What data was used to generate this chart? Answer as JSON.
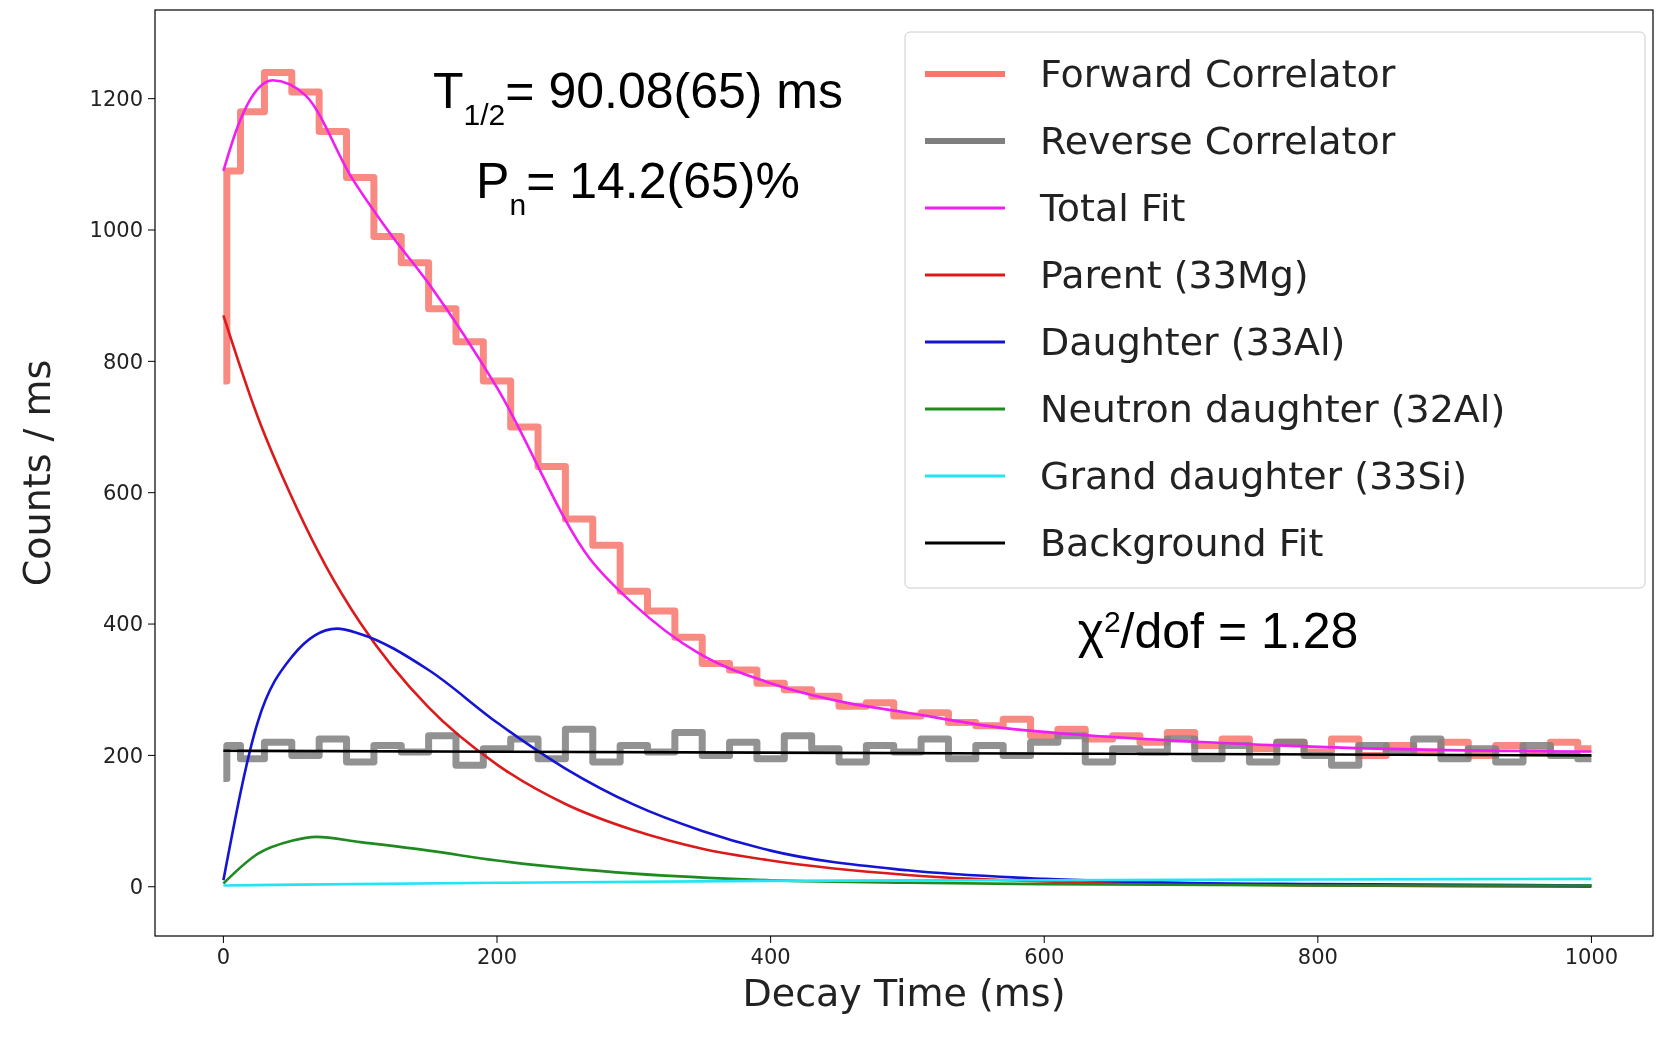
{
  "chart_data": {
    "type": "line",
    "xlabel": "Decay Time (ms)",
    "ylabel": "Counts / ms",
    "xlim": [
      -50,
      1045
    ],
    "ylim": [
      -75,
      1335
    ],
    "xticks": [
      0,
      200,
      400,
      600,
      800,
      1000
    ],
    "yticks": [
      0,
      200,
      400,
      600,
      800,
      1000,
      1200
    ],
    "legend": "top right",
    "grid": false,
    "annotations": [
      "T$_{1/2}$= 90.08(65) ms",
      "P$_{n}$= 14.2(65)%",
      "χ$^{2}$/dof = 1.28"
    ],
    "series": [
      {
        "name": "Forward Correlator",
        "type": "step",
        "color": "#f8766c",
        "x": [
          0,
          5,
          20,
          40,
          60,
          80,
          100,
          120,
          140,
          160,
          180,
          200,
          220,
          240,
          260,
          280,
          300,
          320,
          340,
          360,
          380,
          400,
          420,
          440,
          460,
          480,
          500,
          520,
          540,
          560,
          580,
          600,
          620,
          640,
          660,
          680,
          700,
          720,
          740,
          760,
          780,
          800,
          820,
          840,
          860,
          880,
          900,
          920,
          940,
          960,
          980,
          1000
        ],
        "values": [
          770,
          1090,
          1180,
          1240,
          1210,
          1150,
          1080,
          990,
          950,
          880,
          830,
          770,
          700,
          640,
          560,
          520,
          450,
          420,
          380,
          340,
          330,
          310,
          300,
          290,
          275,
          280,
          260,
          265,
          250,
          245,
          255,
          230,
          240,
          225,
          230,
          220,
          235,
          215,
          225,
          210,
          220,
          205,
          225,
          200,
          215,
          205,
          220,
          200,
          215,
          205,
          220,
          210
        ]
      },
      {
        "name": "Reverse Correlator",
        "type": "step",
        "color": "#7f7f7f",
        "x": [
          0,
          5,
          20,
          40,
          60,
          80,
          100,
          120,
          140,
          160,
          180,
          200,
          220,
          240,
          260,
          280,
          300,
          320,
          340,
          360,
          380,
          400,
          420,
          440,
          460,
          480,
          500,
          520,
          540,
          560,
          580,
          600,
          620,
          640,
          660,
          680,
          700,
          720,
          740,
          760,
          780,
          800,
          820,
          840,
          860,
          880,
          900,
          920,
          940,
          960,
          980,
          1000
        ],
        "values": [
          165,
          215,
          195,
          220,
          200,
          225,
          190,
          215,
          205,
          230,
          185,
          210,
          225,
          195,
          240,
          190,
          215,
          205,
          235,
          200,
          220,
          195,
          230,
          210,
          190,
          215,
          205,
          225,
          195,
          215,
          200,
          220,
          230,
          190,
          210,
          205,
          225,
          195,
          215,
          190,
          220,
          200,
          185,
          215,
          205,
          225,
          195,
          210,
          190,
          215,
          200,
          195
        ]
      },
      {
        "name": "Total Fit",
        "color": "#f01ef0",
        "x": [
          0,
          10,
          20,
          36,
          60,
          94,
          120,
          152,
          200,
          268,
          300,
          347,
          400,
          456,
          500,
          565,
          650,
          750,
          850,
          1000
        ],
        "values": [
          1090,
          1155,
          1200,
          1228,
          1205,
          1079,
          1000,
          913,
          760,
          499,
          430,
          356,
          310,
          280,
          265,
          243,
          228,
          217,
          210,
          206
        ]
      },
      {
        "name": "Parent (33Mg)",
        "color": "#dd1a1a",
        "x": [
          0,
          25,
          50,
          75,
          100,
          150,
          200,
          250,
          300,
          350,
          400,
          500,
          600,
          700,
          800,
          900,
          1000
        ],
        "values": [
          870,
          716,
          593,
          488,
          402,
          273,
          186,
          126,
          86,
          58,
          40,
          18,
          8,
          4,
          2,
          1,
          0
        ]
      },
      {
        "name": "Daughter (33Al)",
        "color": "#1414d4",
        "x": [
          0,
          25,
          50,
          83,
          100,
          150,
          200,
          250,
          300,
          350,
          400,
          500,
          600,
          700,
          800,
          1000
        ],
        "values": [
          10,
          250,
          350,
          393,
          385,
          330,
          250,
          180,
          125,
          85,
          55,
          25,
          12,
          6,
          4,
          2
        ]
      },
      {
        "name": "Neutron daughter (32Al)",
        "color": "#1f8a1f",
        "x": [
          0,
          25,
          50,
          68,
          100,
          150,
          200,
          300,
          400,
          500,
          600,
          800,
          1000
        ],
        "values": [
          5,
          50,
          70,
          76,
          68,
          55,
          40,
          20,
          10,
          6,
          4,
          2,
          2
        ]
      },
      {
        "name": "Grand daughter (33Si)",
        "color": "#22e4f4",
        "x": [
          0,
          200,
          400,
          600,
          800,
          1000
        ],
        "values": [
          2,
          6,
          9,
          10,
          11,
          12
        ]
      },
      {
        "name": "Background Fit",
        "color": "#000000",
        "x": [
          0,
          1000
        ],
        "values": [
          207,
          200
        ]
      }
    ]
  }
}
